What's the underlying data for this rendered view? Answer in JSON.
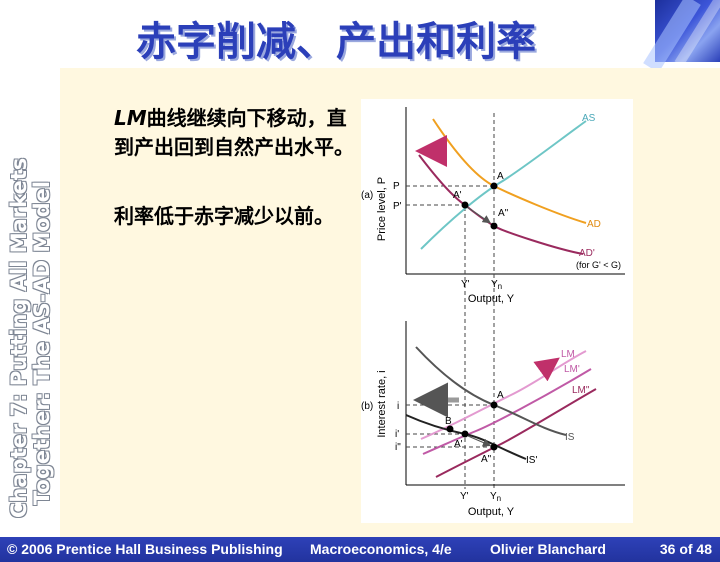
{
  "slide": {
    "title": "赤字削减、产出和利率",
    "side_title_line1": "Chapter 7: Putting All Markets",
    "side_title_line2": "Together: The AS-AD Model",
    "paragraph1_lm": "LM",
    "paragraph1_rest": "曲线继续向下移动，直到产出回到自然产出水平。",
    "paragraph2": "利率低于赤字减少以前。"
  },
  "figure": {
    "top": {
      "panel_label": "(a)",
      "ylabel": "Price level, P",
      "xlabel": "Output, Y",
      "curve_labels": {
        "as": "AS",
        "ad": "AD",
        "ad_prime": "AD'",
        "ad_prime_note": "(for G' < G)"
      },
      "point_labels": {
        "a": "A",
        "a_prime": "A'",
        "a_double": "A\""
      },
      "y_ticks": {
        "p": "P",
        "p_prime": "P'"
      },
      "x_ticks": {
        "y_prime": "Y'",
        "yn": "Y",
        "yn_sub": "n"
      }
    },
    "bottom": {
      "panel_label": "(b)",
      "ylabel": "Interest rate, i",
      "xlabel": "Output, Y",
      "curve_labels": {
        "lm": "LM",
        "lm_prime": "LM'",
        "lm_double": "LM\"",
        "is": "IS",
        "is_prime": "IS'"
      },
      "point_labels": {
        "a": "A",
        "b": "B",
        "a_prime": "A'",
        "a_double": "A\""
      },
      "y_ticks": {
        "i": "i",
        "i_prime": "i'",
        "i_double": "i\""
      },
      "x_ticks": {
        "y_prime": "Y'",
        "yn": "Y",
        "yn_sub": "n"
      }
    },
    "colors": {
      "as": "#6ec6c6",
      "ad": "#f0a020",
      "ad_prime": "#9a2a5e",
      "lm": "#e39ad0",
      "lm_prime": "#c05aa6",
      "lm_double": "#9a2a5e",
      "is": "#555555",
      "is_prime": "#222222",
      "arrow": "#c0306a"
    }
  },
  "footer": {
    "copyright": "© 2006 Prentice Hall Business Publishing",
    "book": "Macroeconomics, 4/e",
    "author": "Olivier Blanchard",
    "page": "36 of 48"
  }
}
